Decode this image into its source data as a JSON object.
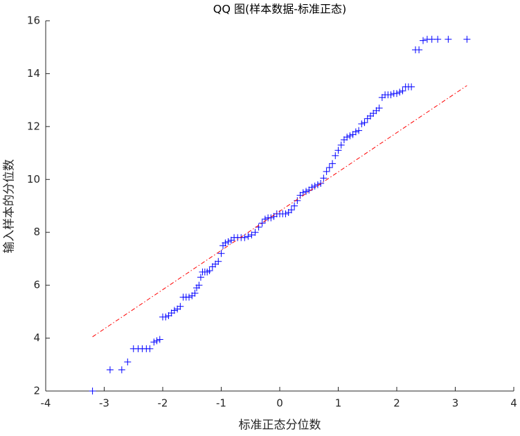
{
  "chart_data": {
    "type": "scatter",
    "title": "QQ 图(样本数据-标准正态)",
    "x_label": "标准正态分位数",
    "y_label": "输入样本的分位数",
    "xlim": [
      -4,
      4
    ],
    "xticks": [
      -4,
      -3,
      -2,
      -1,
      0,
      1,
      2,
      3,
      4
    ],
    "ylim": [
      2,
      16
    ],
    "yticks": [
      2,
      4,
      6,
      8,
      10,
      12,
      14,
      16
    ],
    "grid": false,
    "series": [
      {
        "type": "scatter",
        "marker": "+",
        "color": "#0000ff",
        "x": [
          -3.2,
          -2.9,
          -2.7,
          -2.6,
          -2.5,
          -2.42,
          -2.35,
          -2.28,
          -2.22,
          -2.15,
          -2.1,
          -2.05,
          -2.0,
          -1.95,
          -1.9,
          -1.85,
          -1.8,
          -1.75,
          -1.7,
          -1.65,
          -1.6,
          -1.55,
          -1.5,
          -1.45,
          -1.42,
          -1.38,
          -1.35,
          -1.32,
          -1.28,
          -1.24,
          -1.2,
          -1.15,
          -1.1,
          -1.05,
          -1.0,
          -0.97,
          -0.93,
          -0.88,
          -0.83,
          -0.78,
          -0.72,
          -0.66,
          -0.6,
          -0.54,
          -0.48,
          -0.42,
          -0.36,
          -0.3,
          -0.25,
          -0.2,
          -0.15,
          -0.1,
          -0.05,
          0,
          0.05,
          0.1,
          0.15,
          0.2,
          0.25,
          0.3,
          0.35,
          0.4,
          0.45,
          0.5,
          0.55,
          0.6,
          0.65,
          0.7,
          0.75,
          0.8,
          0.85,
          0.9,
          0.95,
          1.0,
          1.05,
          1.1,
          1.15,
          1.2,
          1.25,
          1.3,
          1.35,
          1.4,
          1.45,
          1.5,
          1.55,
          1.6,
          1.65,
          1.7,
          1.75,
          1.8,
          1.85,
          1.9,
          1.95,
          2.0,
          2.05,
          2.1,
          2.15,
          2.2,
          2.25,
          2.32,
          2.38,
          2.45,
          2.52,
          2.6,
          2.7,
          2.88,
          3.2
        ],
        "y": [
          2.0,
          2.8,
          2.8,
          3.1,
          3.6,
          3.6,
          3.6,
          3.6,
          3.6,
          3.85,
          3.9,
          3.95,
          4.8,
          4.8,
          4.85,
          4.95,
          5.05,
          5.1,
          5.2,
          5.55,
          5.55,
          5.55,
          5.6,
          5.7,
          5.9,
          6.0,
          6.3,
          6.5,
          6.5,
          6.5,
          6.55,
          6.7,
          6.8,
          6.9,
          7.2,
          7.5,
          7.6,
          7.65,
          7.7,
          7.8,
          7.8,
          7.8,
          7.8,
          7.85,
          7.9,
          8.0,
          8.2,
          8.35,
          8.5,
          8.55,
          8.55,
          8.6,
          8.7,
          8.7,
          8.7,
          8.7,
          8.75,
          8.85,
          9.0,
          9.2,
          9.4,
          9.5,
          9.55,
          9.6,
          9.7,
          9.75,
          9.8,
          9.85,
          10.05,
          10.3,
          10.45,
          10.6,
          10.9,
          11.1,
          11.3,
          11.5,
          11.6,
          11.65,
          11.7,
          11.8,
          11.85,
          12.1,
          12.15,
          12.3,
          12.4,
          12.5,
          12.6,
          12.7,
          13.1,
          13.2,
          13.2,
          13.2,
          13.25,
          13.25,
          13.3,
          13.35,
          13.5,
          13.5,
          13.5,
          14.9,
          14.9,
          15.25,
          15.3,
          15.3,
          15.3,
          15.3,
          15.3
        ]
      },
      {
        "type": "line",
        "dash": "dash-dot",
        "color": "#ff0000",
        "x": [
          -3.2,
          3.2
        ],
        "y": [
          4.05,
          13.55
        ]
      }
    ]
  }
}
